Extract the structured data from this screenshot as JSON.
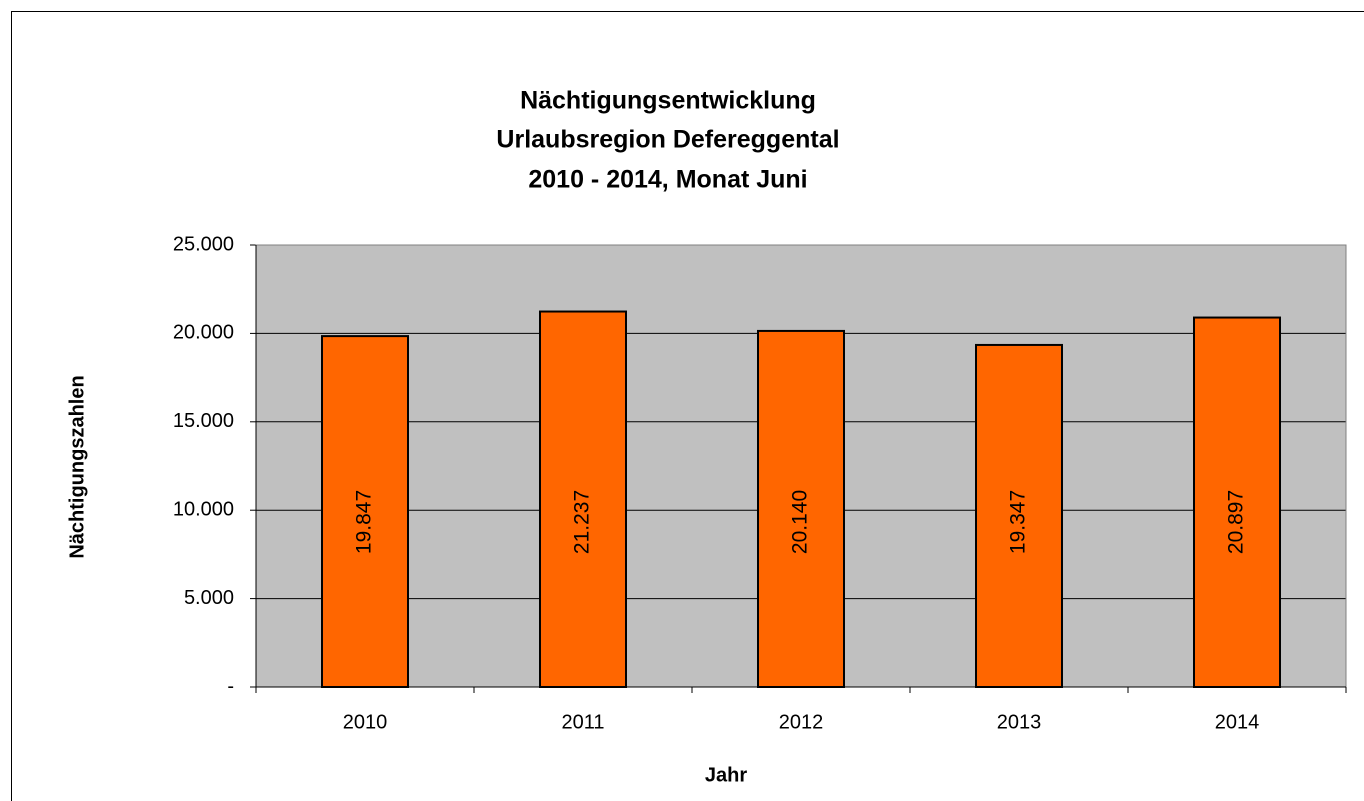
{
  "chart_data": {
    "type": "bar",
    "title": [
      "Nächtigungsentwicklung",
      "Urlaubsregion Defereggental",
      "2010 - 2014, Monat Juni"
    ],
    "x_label": "Jahr",
    "y_label": "Nächtigungszahlen",
    "categories": [
      "2010",
      "2011",
      "2012",
      "2013",
      "2014"
    ],
    "values": [
      19847,
      21237,
      20140,
      19347,
      20897
    ],
    "value_labels": [
      "19.847",
      "21.237",
      "20.140",
      "19.347",
      "20.897"
    ],
    "color": "#ff6600",
    "plot_background": "#c0c0c0",
    "ylim": [
      0,
      25000
    ],
    "yticks": [
      {
        "value": 0,
        "label": "-"
      },
      {
        "value": 5000,
        "label": "5.000"
      },
      {
        "value": 10000,
        "label": "10.000"
      },
      {
        "value": 15000,
        "label": "15.000"
      },
      {
        "value": 20000,
        "label": "20.000"
      },
      {
        "value": 25000,
        "label": "25.000"
      }
    ],
    "grid": true
  }
}
